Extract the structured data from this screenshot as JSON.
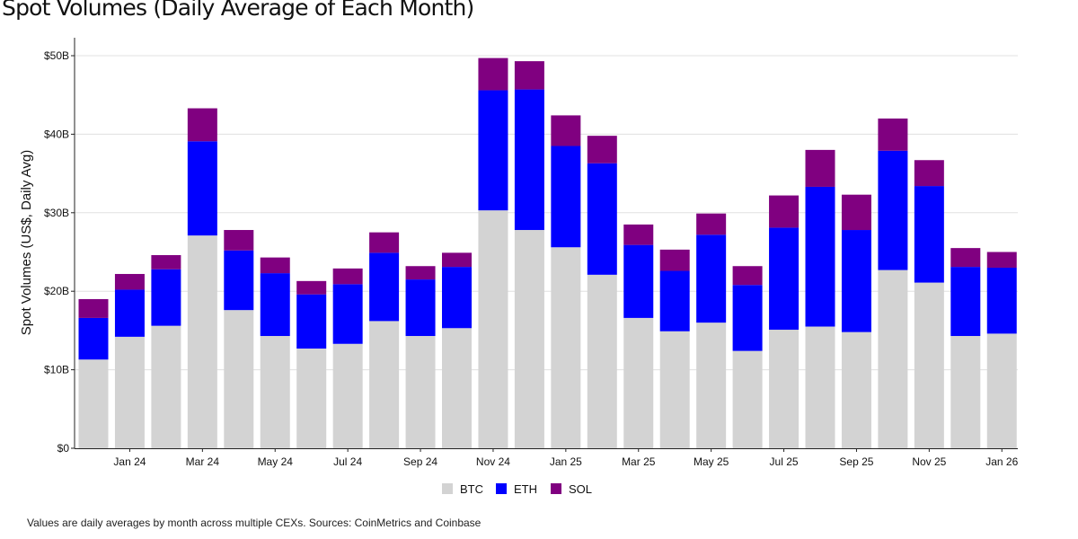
{
  "title": "Spot Volumes (Daily Average of Each Month)",
  "footnote": "Values are daily averages by month across multiple CEXs. Sources: CoinMetrics and Coinbase",
  "colors": {
    "BTC": "#d3d3d3",
    "ETH": "#0000ff",
    "SOL": "#800080",
    "grid": "#e0e0e0"
  },
  "chart_data": {
    "type": "bar",
    "stacked": true,
    "ylabel": "Spot Volumes (US$, Daily Avg)",
    "xlabel": "",
    "ylim": [
      0,
      50
    ],
    "yticks": [
      0,
      10,
      20,
      30,
      40,
      50
    ],
    "ytick_labels": [
      "$0",
      "$10B",
      "$20B",
      "$30B",
      "$40B",
      "$50B"
    ],
    "y_unit": "billion USD",
    "categories": [
      "Dec 23",
      "Jan 24",
      "Feb 24",
      "Mar 24",
      "Apr 24",
      "May 24",
      "Jun 24",
      "Jul 24",
      "Aug 24",
      "Sep 24",
      "Oct 24",
      "Nov 24",
      "Dec 24",
      "Jan 25",
      "Feb 25",
      "Mar 25",
      "Apr 25",
      "May 25",
      "Jun 25",
      "Jul 25",
      "Aug 25",
      "Sep 25",
      "Oct 25",
      "Nov 25",
      "Dec 25",
      "Jan 26"
    ],
    "x_tick_labels": [
      {
        "index": 1,
        "label": "Jan 24"
      },
      {
        "index": 3,
        "label": "Mar 24"
      },
      {
        "index": 5,
        "label": "May 24"
      },
      {
        "index": 7,
        "label": "Jul 24"
      },
      {
        "index": 9,
        "label": "Sep 24"
      },
      {
        "index": 11,
        "label": "Nov 24"
      },
      {
        "index": 13,
        "label": "Jan 25"
      },
      {
        "index": 15,
        "label": "Mar 25"
      },
      {
        "index": 17,
        "label": "May 25"
      },
      {
        "index": 19,
        "label": "Jul 25"
      },
      {
        "index": 21,
        "label": "Sep 25"
      },
      {
        "index": 23,
        "label": "Nov 25"
      },
      {
        "index": 25,
        "label": "Jan 26"
      }
    ],
    "series": [
      {
        "name": "BTC",
        "values": [
          11.3,
          14.2,
          15.6,
          27.1,
          17.6,
          14.3,
          12.7,
          13.3,
          16.2,
          14.3,
          15.3,
          30.3,
          27.8,
          25.6,
          22.1,
          16.6,
          14.9,
          16.0,
          12.4,
          15.1,
          15.5,
          14.8,
          22.7,
          21.1,
          14.3,
          14.6
        ]
      },
      {
        "name": "ETH",
        "values": [
          5.3,
          6.0,
          7.2,
          12.0,
          7.6,
          8.0,
          6.9,
          7.6,
          8.7,
          7.2,
          7.8,
          15.3,
          17.9,
          12.9,
          14.2,
          9.3,
          7.7,
          11.2,
          8.4,
          13.0,
          17.8,
          13.0,
          15.2,
          12.3,
          8.8,
          8.4
        ]
      },
      {
        "name": "SOL",
        "values": [
          2.4,
          2.0,
          1.8,
          4.2,
          2.6,
          2.0,
          1.7,
          2.0,
          2.6,
          1.7,
          1.8,
          4.1,
          3.6,
          3.9,
          3.5,
          2.6,
          2.7,
          2.7,
          2.4,
          4.1,
          4.7,
          4.5,
          4.1,
          3.3,
          2.4,
          2.0
        ]
      }
    ],
    "legend": {
      "position": "bottom-center",
      "entries": [
        "BTC",
        "ETH",
        "SOL"
      ]
    },
    "grid": {
      "horizontal": true,
      "vertical": false
    }
  }
}
